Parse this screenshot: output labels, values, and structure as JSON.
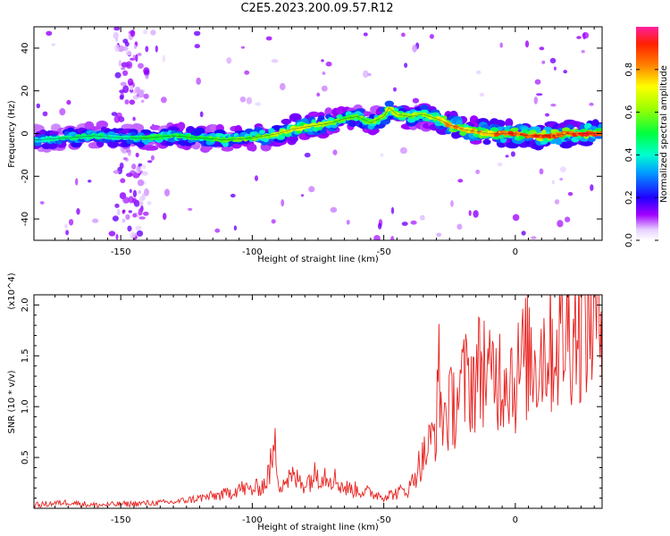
{
  "title": "C2E5.2023.200.09.57.R12",
  "chart_data": [
    {
      "type": "heatmap",
      "xlabel": "Height of straight line (km)",
      "ylabel": "Frequency (Hz)",
      "xlim": [
        -183,
        33
      ],
      "ylim": [
        -50,
        50
      ],
      "xticks": [
        -150,
        -100,
        -50,
        0
      ],
      "yticks": [
        -40,
        -20,
        0,
        20,
        40
      ],
      "colorbar": {
        "label": "Normalized spectral amplitude",
        "range": [
          0,
          1
        ],
        "ticks": [
          0.0,
          0.2,
          0.4,
          0.6,
          0.8
        ],
        "colormap": "rainbow (white-violet-blue-cyan-green-yellow-red-magenta)"
      },
      "ridge": {
        "x": [
          -183,
          -170,
          -160,
          -150,
          -140,
          -130,
          -120,
          -110,
          -100,
          -95,
          -90,
          -85,
          -80,
          -75,
          -70,
          -65,
          -60,
          -55,
          -50,
          -48,
          -45,
          -40,
          -35,
          -30,
          -28,
          -25,
          -22,
          -20,
          -15,
          -10,
          -5,
          0,
          5,
          10,
          15,
          20,
          25,
          33
        ],
        "y": [
          -3,
          -2,
          -1,
          -2,
          -2,
          -1,
          -2,
          -3,
          -2,
          -1,
          0,
          2,
          3,
          4,
          5,
          7,
          8,
          5,
          8,
          12,
          9,
          8,
          9,
          7,
          6,
          4,
          3,
          2,
          1,
          0,
          0,
          0,
          -1,
          -1,
          -1,
          0,
          0,
          0
        ],
        "amplitude": [
          0.4,
          0.5,
          0.5,
          0.45,
          0.55,
          0.55,
          0.55,
          0.6,
          0.6,
          0.65,
          0.7,
          0.75,
          0.75,
          0.7,
          0.65,
          0.6,
          0.6,
          0.6,
          0.65,
          0.75,
          0.7,
          0.65,
          0.65,
          0.7,
          0.8,
          0.85,
          0.85,
          0.8,
          0.8,
          0.85,
          0.9,
          0.95,
          0.9,
          0.95,
          0.9,
          0.9,
          0.95,
          0.95
        ]
      }
    },
    {
      "type": "line",
      "xlabel": "Height of straight line (km)",
      "ylabel": "SNR (10 * v/v)",
      "y_multiplier": "(x10^4)",
      "xlim": [
        -183,
        33
      ],
      "ylim": [
        0,
        2.1
      ],
      "xticks": [
        -150,
        -100,
        -50,
        0
      ],
      "yticks": [
        0.5,
        1.0,
        1.5,
        2.0
      ],
      "series": [
        {
          "color": "#e8221f",
          "x": [
            -183,
            -175,
            -170,
            -160,
            -150,
            -140,
            -130,
            -120,
            -110,
            -105,
            -100,
            -95,
            -91,
            -90,
            -85,
            -80,
            -75,
            -70,
            -65,
            -60,
            -55,
            -50,
            -45,
            -40,
            -38,
            -35,
            -32,
            -30,
            -29,
            -28,
            -25,
            -22,
            -20,
            -18,
            -15,
            -12,
            -10,
            -8,
            -5,
            -3,
            0,
            3,
            5,
            8,
            10,
            12,
            15,
            18,
            20,
            22,
            25,
            28,
            30,
            33
          ],
          "y": [
            0.03,
            0.05,
            0.06,
            0.03,
            0.04,
            0.05,
            0.06,
            0.1,
            0.14,
            0.2,
            0.18,
            0.24,
            0.6,
            0.25,
            0.3,
            0.25,
            0.35,
            0.32,
            0.2,
            0.18,
            0.15,
            0.12,
            0.15,
            0.2,
            0.35,
            0.5,
            0.65,
            0.85,
            1.3,
            0.9,
            0.95,
            1.1,
            1.2,
            1.25,
            1.3,
            1.45,
            1.2,
            1.35,
            1.3,
            1.4,
            1.25,
            1.45,
            1.5,
            1.45,
            1.55,
            1.6,
            1.6,
            1.7,
            1.75,
            1.8,
            1.85,
            1.85,
            1.88,
            1.9
          ]
        }
      ]
    }
  ]
}
